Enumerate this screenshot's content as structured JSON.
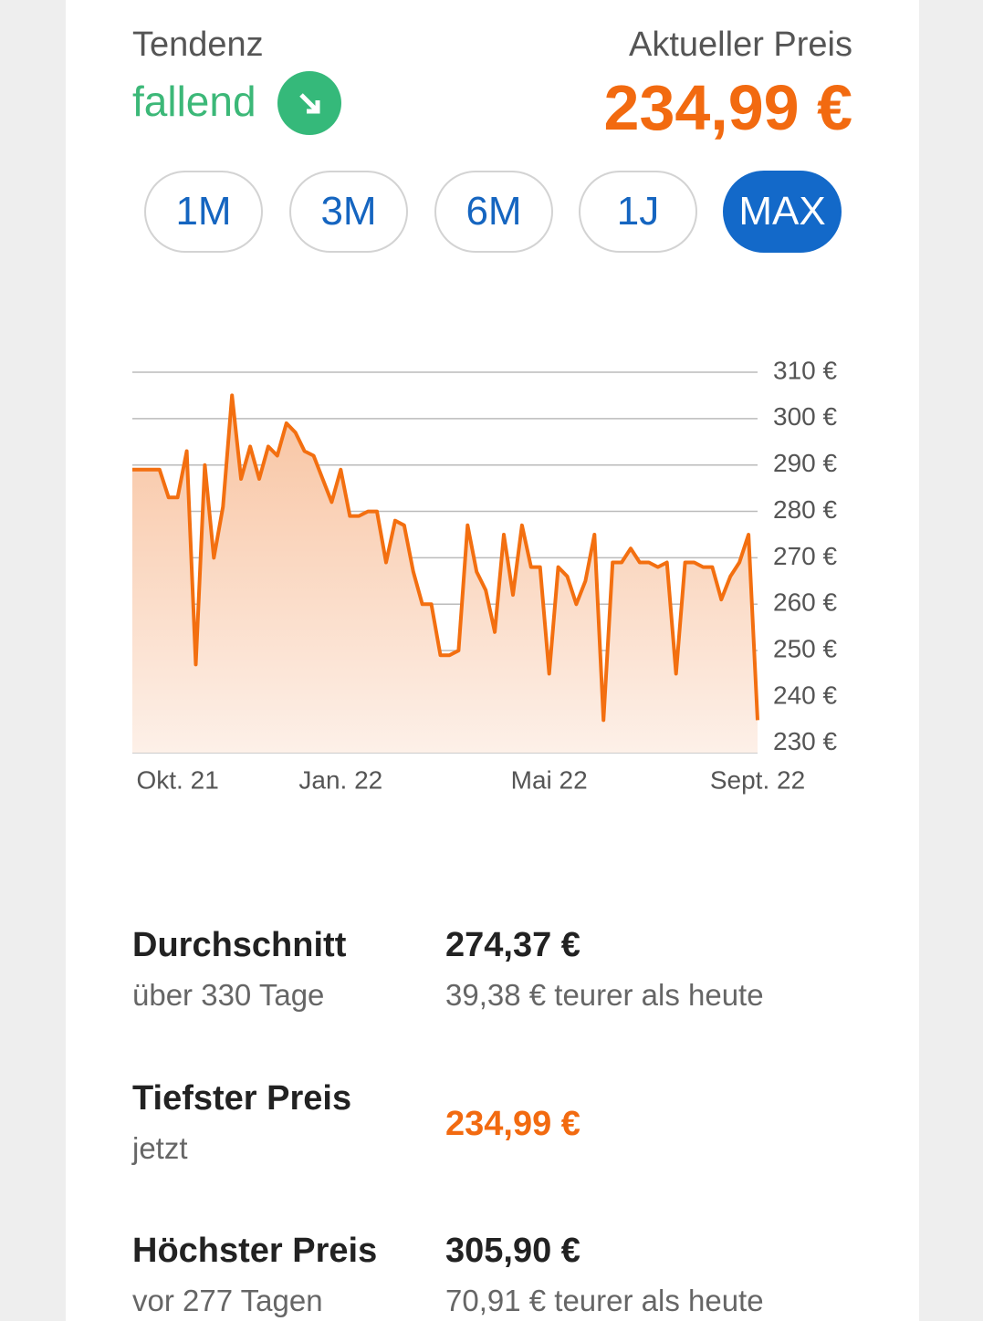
{
  "header": {
    "tendency_label": "Tendenz",
    "tendency_value": "fallend",
    "price_label": "Aktueller Preis",
    "price": "234,99 €"
  },
  "ranges": {
    "options": [
      "1M",
      "3M",
      "6M",
      "1J",
      "MAX"
    ],
    "active": 4
  },
  "chart_data": {
    "type": "line",
    "categories": [
      null,
      null,
      null,
      null,
      null,
      "Okt. 21",
      null,
      null,
      null,
      null,
      null,
      null,
      null,
      null,
      null,
      null,
      null,
      null,
      null,
      null,
      null,
      null,
      null,
      "Jan. 22",
      null,
      null,
      null,
      null,
      null,
      null,
      null,
      null,
      null,
      null,
      null,
      null,
      null,
      null,
      null,
      null,
      null,
      null,
      null,
      null,
      null,
      null,
      "Mai 22",
      null,
      null,
      null,
      null,
      null,
      null,
      null,
      null,
      null,
      null,
      null,
      null,
      null,
      null,
      null,
      null,
      null,
      null,
      null,
      null,
      null,
      null,
      "Sept. 22"
    ],
    "series": [
      {
        "color": "#f36f10",
        "values": [
          289,
          289,
          289,
          289,
          283,
          283,
          293,
          247,
          290,
          270,
          281,
          305,
          287,
          294,
          287,
          294,
          292,
          299,
          297,
          293,
          292,
          287,
          282,
          289,
          279,
          279,
          280,
          280,
          269,
          278,
          277,
          267,
          260,
          260,
          249,
          249,
          250,
          277,
          267,
          263,
          254,
          275,
          262,
          277,
          268,
          268,
          245,
          268,
          266,
          260,
          265,
          275,
          235,
          269,
          269,
          272,
          269,
          269,
          268,
          269,
          245,
          269,
          269,
          268,
          268,
          261,
          266,
          269,
          275,
          235
        ]
      }
    ],
    "ylim": [
      228,
      310
    ],
    "yticks": [
      {
        "value": 230,
        "label": "230 €"
      },
      {
        "value": 240,
        "label": "240 €"
      },
      {
        "value": 250,
        "label": "250 €"
      },
      {
        "value": 260,
        "label": "260 €"
      },
      {
        "value": 270,
        "label": "270 €"
      },
      {
        "value": 280,
        "label": "280 €"
      },
      {
        "value": 290,
        "label": "290 €"
      },
      {
        "value": 300,
        "label": "300 €"
      },
      {
        "value": 310,
        "label": "310 €"
      }
    ],
    "grid": true
  },
  "stats": [
    {
      "label": "Durchschnitt",
      "sub": "über 330 Tage",
      "value": "274,37 €",
      "note": "39,38 € teurer als heute"
    },
    {
      "label": "Tiefster Preis",
      "sub": "jetzt",
      "value": "234,99 €"
    },
    {
      "label": "Höchster Preis",
      "sub": "vor 277 Tagen",
      "value": "305,90 €",
      "note": "70,91 € teurer als heute"
    }
  ]
}
